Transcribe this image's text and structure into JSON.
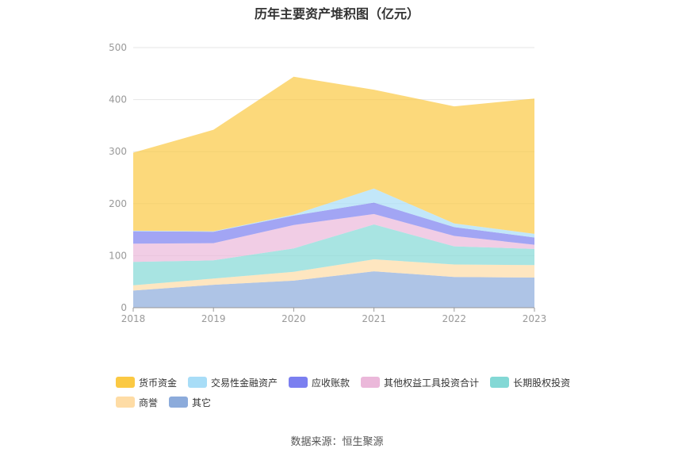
{
  "chart_data": {
    "type": "area",
    "stacked": true,
    "title": "历年主要资产堆积图（亿元）",
    "x": [
      "2018",
      "2019",
      "2020",
      "2021",
      "2022",
      "2023"
    ],
    "ylim": [
      0,
      500
    ],
    "yticks": [
      "0",
      "100",
      "200",
      "300",
      "400",
      "500"
    ],
    "grid": true,
    "legend_position": "bottom",
    "series": [
      {
        "name": "货币资金",
        "color": "#FBC943",
        "values": [
          150,
          195,
          265,
          190,
          225,
          260
        ]
      },
      {
        "name": "交易性金融资产",
        "color": "#A8DDF7",
        "values": [
          1,
          1,
          2,
          27,
          7,
          7
        ]
      },
      {
        "name": "应收账款",
        "color": "#7B7FF0",
        "values": [
          24,
          22,
          18,
          22,
          17,
          14
        ]
      },
      {
        "name": "其他权益工具投资合计",
        "color": "#EBB8DA",
        "values": [
          35,
          33,
          45,
          20,
          20,
          8
        ]
      },
      {
        "name": "长期股权投资",
        "color": "#83D8D5",
        "values": [
          45,
          35,
          45,
          67,
          35,
          31
        ]
      },
      {
        "name": "商誉",
        "color": "#FEDCA5",
        "values": [
          10,
          12,
          17,
          23,
          24,
          24
        ]
      },
      {
        "name": "其它",
        "color": "#8CABDB",
        "values": [
          33,
          44,
          52,
          70,
          59,
          58
        ]
      }
    ]
  },
  "source": "数据来源：恒生聚源"
}
